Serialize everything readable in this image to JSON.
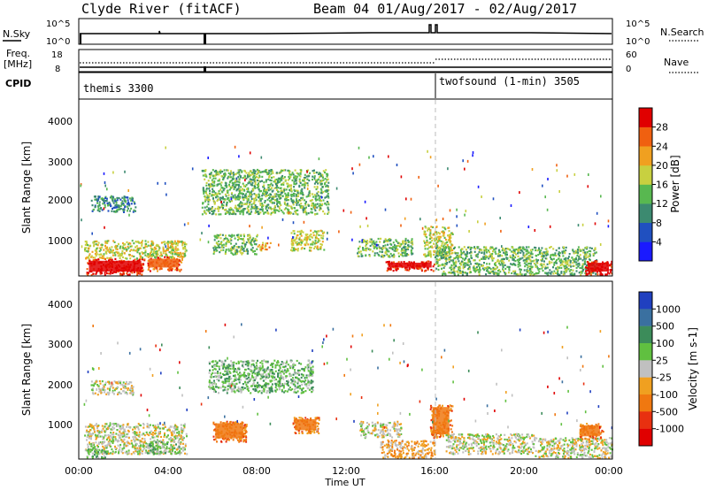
{
  "header": {
    "station": "Clyde River (fitACF)",
    "beam_info": "Beam 04 01/Aug/2017 - 02/Aug/2017"
  },
  "panels": {
    "nsky_label": "N.Sky",
    "nsky_ticks": [
      "10^5",
      "10^0"
    ],
    "nsearch_label": "N.Search",
    "nsearch_ticks": [
      "10^5",
      "10^0"
    ],
    "freq_label": "Freq.",
    "freq_unit": "[MHz]",
    "freq_ticks": [
      "18",
      "8"
    ],
    "nave_label": "Nave",
    "nave_ticks": [
      "60",
      "0"
    ],
    "cpid_label": "CPID",
    "cpid_modes": [
      "themis 3300",
      "twofsound (1-min) 3505"
    ]
  },
  "chart_data": [
    {
      "type": "heatmap",
      "ylabel": "Slant Range [km]",
      "yticks": [
        "1000",
        "2000",
        "3000",
        "4000"
      ],
      "ylim": [
        180,
        4500
      ],
      "x_range_hours": [
        0,
        24
      ],
      "colorbar_label": "Power [dB]",
      "colorbar_ticks": [
        "4",
        "8",
        "12",
        "16",
        "20",
        "24",
        "28"
      ],
      "colorbar_colors": [
        "#1a1aff",
        "#2050c0",
        "#3c8a70",
        "#58b850",
        "#c8d040",
        "#f0a020",
        "#f06010",
        "#e00000"
      ],
      "regions": [
        {
          "h0": 0.3,
          "h1": 2.9,
          "r0": 200,
          "r1": 600,
          "level": 7
        },
        {
          "h0": 0.2,
          "h1": 4.8,
          "r0": 600,
          "r1": 1050,
          "level": 4
        },
        {
          "h0": 0.5,
          "h1": 2.5,
          "r0": 1750,
          "r1": 2150,
          "level": 2
        },
        {
          "h0": 3.0,
          "h1": 4.6,
          "r0": 300,
          "r1": 650,
          "level": 6
        },
        {
          "h0": 6.0,
          "h1": 8.0,
          "r0": 700,
          "r1": 1200,
          "level": 3
        },
        {
          "h0": 8.0,
          "h1": 8.6,
          "r0": 800,
          "r1": 1000,
          "level": 5
        },
        {
          "h0": 5.5,
          "h1": 11.2,
          "r0": 1700,
          "r1": 2800,
          "level": 3
        },
        {
          "h0": 9.5,
          "h1": 11.0,
          "r0": 800,
          "r1": 1300,
          "level": 4
        },
        {
          "h0": 12.5,
          "h1": 15.0,
          "r0": 650,
          "r1": 1100,
          "level": 3
        },
        {
          "h0": 13.8,
          "h1": 16.0,
          "r0": 300,
          "r1": 550,
          "level": 7
        },
        {
          "h0": 15.5,
          "h1": 16.8,
          "r0": 650,
          "r1": 1400,
          "level": 4
        },
        {
          "h0": 16.0,
          "h1": 23.3,
          "r0": 200,
          "r1": 900,
          "level": 3
        },
        {
          "h0": 22.8,
          "h1": 24.0,
          "r0": 200,
          "r1": 550,
          "level": 7
        }
      ]
    },
    {
      "type": "heatmap",
      "ylabel": "Slant Range [km]",
      "yticks": [
        "1000",
        "2000",
        "3000",
        "4000"
      ],
      "ylim": [
        180,
        4500
      ],
      "x_range_hours": [
        0,
        24
      ],
      "xticks": [
        "00:00",
        "04:00",
        "08:00",
        "12:00",
        "16:00",
        "20:00",
        "00:00"
      ],
      "xlabel": "Time UT",
      "colorbar_label": "Velocity [m s-1]",
      "colorbar_ticks": [
        "1000",
        "500",
        "100",
        "25",
        "-25",
        "-100",
        "-500",
        "-1000"
      ],
      "colorbar_colors": [
        "#2040c0",
        "#3a70a0",
        "#3c8c5a",
        "#60c040",
        "#c0c0c0",
        "#f0a020",
        "#f07810",
        "#e83010",
        "#e00000"
      ],
      "regions": [
        {
          "h0": 0.2,
          "h1": 4.8,
          "r0": 300,
          "r1": 1050,
          "level": 4
        },
        {
          "h0": 0.3,
          "h1": 1.2,
          "r0": 200,
          "r1": 500,
          "level": 3
        },
        {
          "h0": 0.5,
          "h1": 2.4,
          "r0": 1750,
          "r1": 2100,
          "level": 4
        },
        {
          "h0": 3.0,
          "h1": 4.5,
          "r0": 300,
          "r1": 600,
          "level": 3
        },
        {
          "h0": 6.0,
          "h1": 7.5,
          "r0": 600,
          "r1": 1100,
          "level": 6
        },
        {
          "h0": 5.8,
          "h1": 10.5,
          "r0": 1800,
          "r1": 2600,
          "level": 3
        },
        {
          "h0": 9.6,
          "h1": 10.8,
          "r0": 800,
          "r1": 1200,
          "level": 6
        },
        {
          "h0": 12.6,
          "h1": 14.5,
          "r0": 700,
          "r1": 1100,
          "level": 4
        },
        {
          "h0": 13.5,
          "h1": 16.0,
          "r0": 200,
          "r1": 650,
          "level": 5
        },
        {
          "h0": 15.8,
          "h1": 16.8,
          "r0": 700,
          "r1": 1500,
          "level": 6
        },
        {
          "h0": 16.5,
          "h1": 20.5,
          "r0": 300,
          "r1": 800,
          "level": 4
        },
        {
          "h0": 20.5,
          "h1": 24.0,
          "r0": 200,
          "r1": 700,
          "level": 4
        },
        {
          "h0": 22.5,
          "h1": 23.6,
          "r0": 650,
          "r1": 1050,
          "level": 6
        }
      ]
    }
  ]
}
